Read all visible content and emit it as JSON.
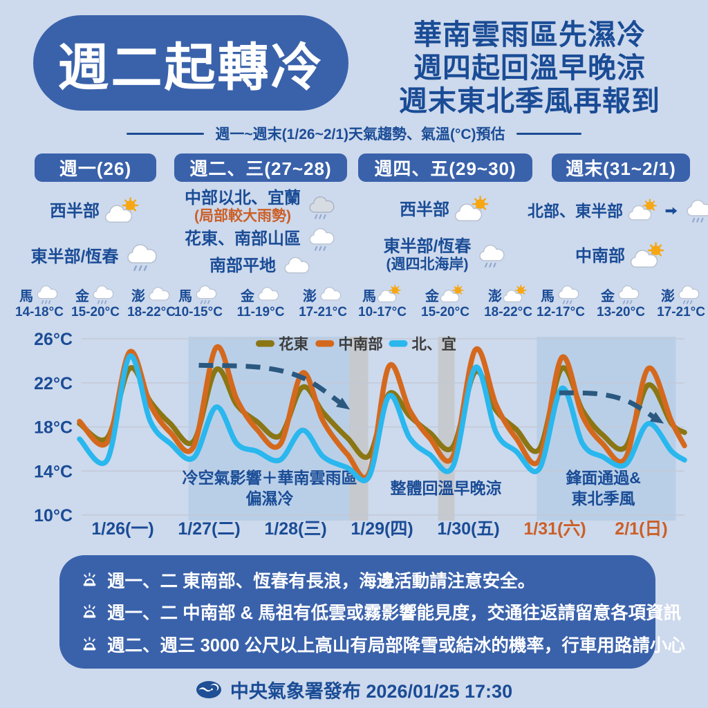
{
  "page": {
    "bg": "#cdd9ec",
    "accent_blue": "#3a62ab",
    "navy": "#1a4c96",
    "orange": "#cb5f27"
  },
  "header": {
    "title": "週二起轉冷",
    "headlines": [
      "華南雲雨區先濕冷",
      "週四起回溫早晚涼",
      "週末東北季風再報到"
    ]
  },
  "subtitle": {
    "text": "週一~週末(1/26~2/1)天氣趨勢、氣溫(°C)預估"
  },
  "forecast": {
    "columns": [
      {
        "header": "週一(26)",
        "rows": [
          {
            "label": "西半部",
            "icon": "partly"
          },
          {
            "label": "東半部/恆春",
            "icon": "rain"
          }
        ],
        "islands": [
          {
            "name": "馬",
            "icon": "rain",
            "temp": "14-18°C"
          },
          {
            "name": "金",
            "icon": "rain",
            "temp": "15-20°C"
          },
          {
            "name": "澎",
            "icon": "cloud",
            "temp": "18-22°C"
          }
        ]
      },
      {
        "header": "週二、三(27~28)",
        "rows": [
          {
            "label": "中部以北、宜蘭",
            "sub": "(局部較大雨勢)",
            "icon": "darkrain"
          },
          {
            "label": "花東、南部山區",
            "icon": "rain"
          },
          {
            "label": "南部平地",
            "icon": "cloud"
          }
        ],
        "islands": [
          {
            "name": "馬",
            "icon": "rain",
            "temp": "10-15°C"
          },
          {
            "name": "金",
            "icon": "cloud",
            "temp": "11-19°C"
          },
          {
            "name": "澎",
            "icon": "cloud",
            "temp": "17-21°C"
          }
        ]
      },
      {
        "header": "週四、五(29~30)",
        "rows": [
          {
            "label": "西半部",
            "icon": "partly"
          },
          {
            "label": "東半部/恆春",
            "sub": "(週四北海岸)",
            "icon": "rain"
          }
        ],
        "islands": [
          {
            "name": "馬",
            "icon": "partly",
            "temp": "10-17°C"
          },
          {
            "name": "金",
            "icon": "partly",
            "temp": "15-20°C"
          },
          {
            "name": "澎",
            "icon": "partly",
            "temp": "18-22°C"
          }
        ]
      },
      {
        "header": "週末(31~2/1)",
        "rows": [
          {
            "label": "北部、東半部",
            "icon": "partly",
            "icon2": "rain"
          },
          {
            "label": "中南部",
            "icon": "partly"
          }
        ],
        "islands": [
          {
            "name": "馬",
            "icon": "rain",
            "temp": "12-17°C"
          },
          {
            "name": "金",
            "icon": "rain",
            "temp": "13-20°C"
          },
          {
            "name": "澎",
            "icon": "rain",
            "temp": "17-21°C"
          }
        ]
      }
    ]
  },
  "chart_data": {
    "type": "line",
    "title": "",
    "ylabel": "氣溫(°C)",
    "ylim": [
      10,
      26
    ],
    "yticks": [
      26,
      22,
      18,
      14,
      10
    ],
    "ytick_labels": [
      "26°C",
      "22°C",
      "18°C",
      "14°C",
      "10°C"
    ],
    "x_labels": [
      {
        "text": "1/26(一)",
        "color": "#1a4c96"
      },
      {
        "text": "1/27(二)",
        "color": "#1a4c96"
      },
      {
        "text": "1/28(三)",
        "color": "#1a4c96"
      },
      {
        "text": "1/29(四)",
        "color": "#1a4c96"
      },
      {
        "text": "1/30(五)",
        "color": "#1a4c96"
      },
      {
        "text": "1/31(六)",
        "color": "#cb5f27"
      },
      {
        "text": "2/1(日)",
        "color": "#cb5f27"
      }
    ],
    "grid": true,
    "legend_position": "top",
    "legend": {
      "x_positions": [
        2.04,
        2.73,
        3.58
      ],
      "y_temp": 25.55
    },
    "series": [
      {
        "name": "花東",
        "color": "#8b7614",
        "points": [
          [
            0,
            18.3
          ],
          [
            0.32,
            17.0
          ],
          [
            0.58,
            23.3
          ],
          [
            0.82,
            20.3
          ],
          [
            1.05,
            18.3
          ],
          [
            1.32,
            16.7
          ],
          [
            1.58,
            23.2
          ],
          [
            1.82,
            20.0
          ],
          [
            2.05,
            18.5
          ],
          [
            2.32,
            17.2
          ],
          [
            2.58,
            21.6
          ],
          [
            2.82,
            19.3
          ],
          [
            3.1,
            17.0
          ],
          [
            3.35,
            15.4
          ],
          [
            3.58,
            21.0
          ],
          [
            3.82,
            19.0
          ],
          [
            4.05,
            17.5
          ],
          [
            4.32,
            16.2
          ],
          [
            4.58,
            23.0
          ],
          [
            4.82,
            19.5
          ],
          [
            5.05,
            17.8
          ],
          [
            5.32,
            16.0
          ],
          [
            5.58,
            23.3
          ],
          [
            5.82,
            19.5
          ],
          [
            6.05,
            17.3
          ],
          [
            6.32,
            16.2
          ],
          [
            6.58,
            21.8
          ],
          [
            6.85,
            18.3
          ],
          [
            7,
            17.5
          ]
        ]
      },
      {
        "name": "中南部",
        "color": "#d4691e",
        "points": [
          [
            0,
            18.5
          ],
          [
            0.32,
            16.6
          ],
          [
            0.58,
            24.8
          ],
          [
            0.82,
            20.0
          ],
          [
            1.05,
            17.5
          ],
          [
            1.32,
            16.2
          ],
          [
            1.58,
            25.2
          ],
          [
            1.82,
            20.5
          ],
          [
            2.05,
            17.8
          ],
          [
            2.32,
            16.4
          ],
          [
            2.58,
            22.9
          ],
          [
            2.82,
            18.5
          ],
          [
            3.1,
            15.5
          ],
          [
            3.35,
            13.8
          ],
          [
            3.58,
            23.5
          ],
          [
            3.82,
            19.5
          ],
          [
            4.05,
            17.0
          ],
          [
            4.32,
            15.3
          ],
          [
            4.58,
            25.0
          ],
          [
            4.82,
            20.0
          ],
          [
            5.05,
            17.0
          ],
          [
            5.32,
            15.0
          ],
          [
            5.58,
            24.3
          ],
          [
            5.82,
            19.0
          ],
          [
            6.05,
            16.5
          ],
          [
            6.32,
            15.2
          ],
          [
            6.58,
            23.3
          ],
          [
            6.85,
            18.5
          ],
          [
            7,
            16.3
          ]
        ]
      },
      {
        "name": "北、宜",
        "color": "#29b7ee",
        "points": [
          [
            0,
            16.9
          ],
          [
            0.32,
            15.0
          ],
          [
            0.58,
            24.4
          ],
          [
            0.82,
            18.5
          ],
          [
            1.05,
            16.5
          ],
          [
            1.32,
            15.2
          ],
          [
            1.58,
            19.8
          ],
          [
            1.82,
            16.5
          ],
          [
            2.05,
            15.8
          ],
          [
            2.32,
            15.0
          ],
          [
            2.58,
            17.7
          ],
          [
            2.82,
            15.3
          ],
          [
            3.1,
            14.3
          ],
          [
            3.35,
            13.5
          ],
          [
            3.58,
            20.8
          ],
          [
            3.82,
            17.0
          ],
          [
            4.05,
            15.5
          ],
          [
            4.32,
            14.4
          ],
          [
            4.58,
            23.4
          ],
          [
            4.82,
            17.5
          ],
          [
            5.05,
            15.8
          ],
          [
            5.32,
            14.2
          ],
          [
            5.58,
            21.5
          ],
          [
            5.82,
            16.5
          ],
          [
            6.05,
            15.3
          ],
          [
            6.32,
            14.6
          ],
          [
            6.58,
            18.3
          ],
          [
            6.85,
            15.8
          ],
          [
            7,
            15.0
          ]
        ]
      }
    ],
    "bands": [
      {
        "x0": 1.26,
        "x1": 3.12,
        "color": "#b9cfe8"
      },
      {
        "x0": 3.12,
        "x1": 3.34,
        "color": "#c6c9cd"
      },
      {
        "x0": 4.15,
        "x1": 4.34,
        "color": "#c6c9cd"
      },
      {
        "x0": 5.29,
        "x1": 6.9,
        "color": "#b9cfe8"
      }
    ],
    "annotations": [
      {
        "lines": [
          "冷空氣影響＋華南雲雨區",
          "偏濕冷"
        ],
        "x": 2.2
      },
      {
        "lines": [
          "整體回溫早晚涼"
        ],
        "x": 4.24
      },
      {
        "lines": [
          "鋒面通過&",
          "東北季風"
        ],
        "x": 6.06
      }
    ],
    "arrows": [
      {
        "points": [
          [
            1.38,
            23.6
          ],
          [
            2.1,
            23.4
          ],
          [
            2.6,
            22.4
          ],
          [
            3.05,
            20.0
          ]
        ],
        "color": "#2a587f"
      },
      {
        "points": [
          [
            5.55,
            21.1
          ],
          [
            6.0,
            21.0
          ],
          [
            6.35,
            20.3
          ],
          [
            6.68,
            18.7
          ]
        ],
        "color": "#2a587f"
      }
    ]
  },
  "warnings": {
    "items": [
      {
        "text": "週一、二 東南部、恆春有長浪，海邊活動請注意安全。"
      },
      {
        "text": "週一、二 中南部 & 馬祖有低雲或霧影響能見度，交通往返請留意各項資訊"
      },
      {
        "text": "週二、週三 3000 公尺以上高山有局部降雪或結冰的機率，行車用路請小心"
      }
    ]
  },
  "footer": {
    "text": "中央氣象署發布 2026/01/25 17:30"
  }
}
